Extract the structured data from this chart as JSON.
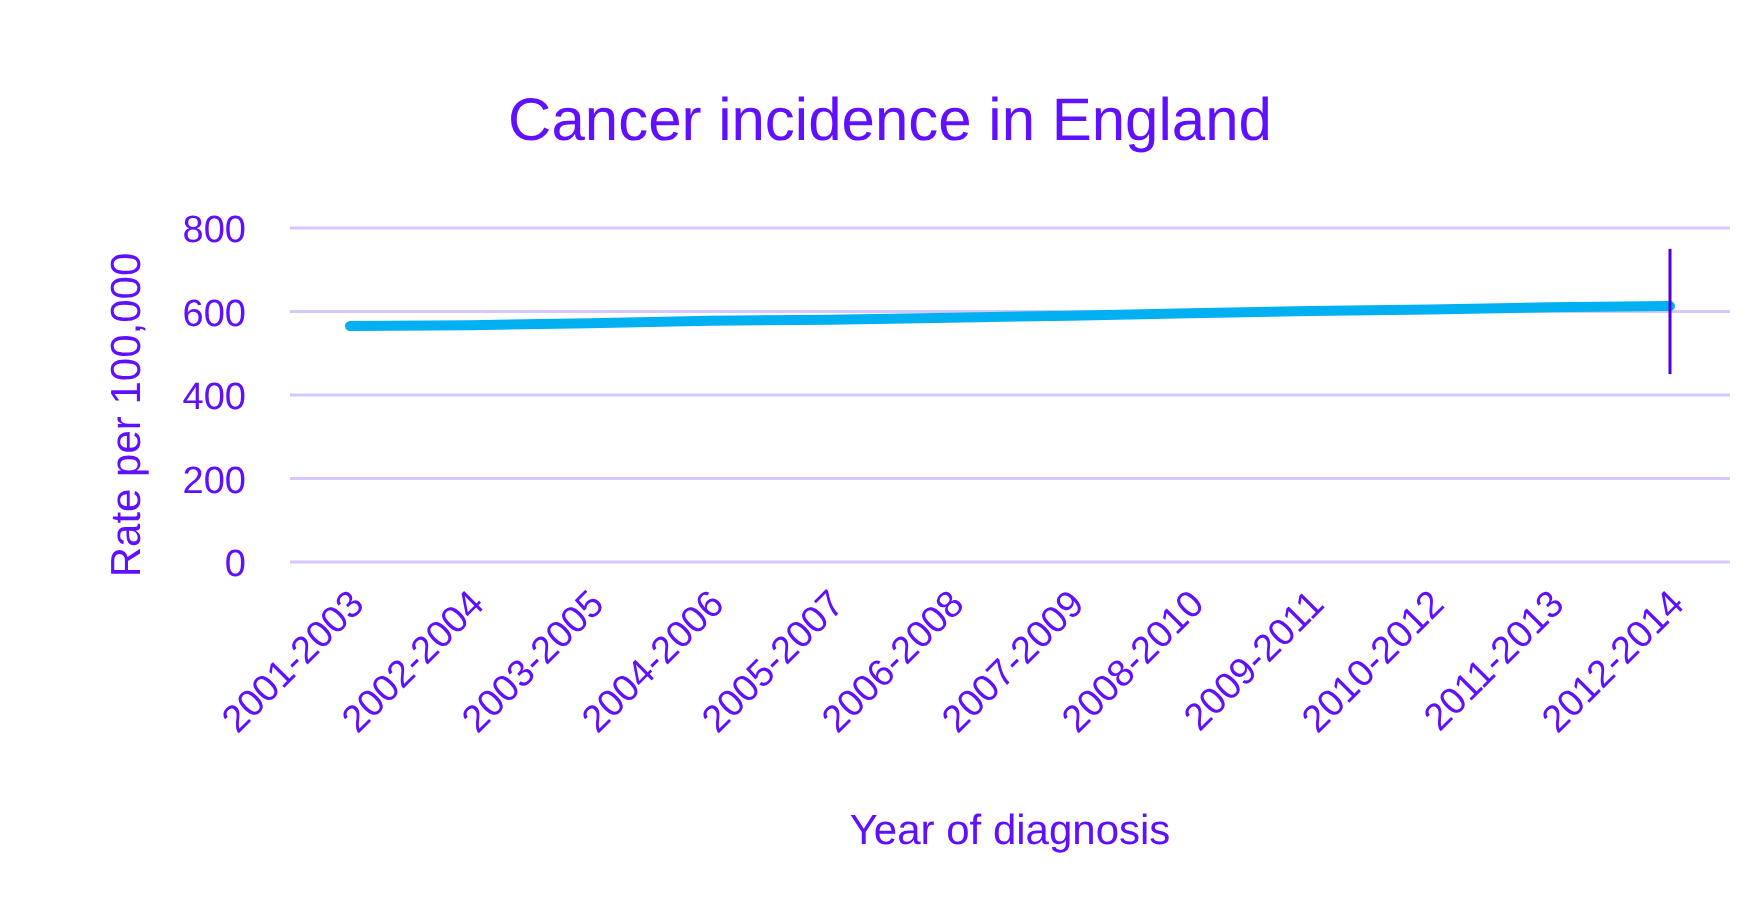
{
  "chart_data": {
    "type": "line",
    "title": "Cancer incidence in England",
    "xlabel": "Year of diagnosis",
    "ylabel": "Rate per 100,000",
    "categories": [
      "2001-2003",
      "2002-2004",
      "2003-2005",
      "2004-2006",
      "2005-2007",
      "2006-2008",
      "2007-2009",
      "2008-2010",
      "2009-2011",
      "2010-2012",
      "2011-2013",
      "2012-2014"
    ],
    "series": [
      {
        "color": "#00b0f0",
        "values": [
          565,
          567,
          572,
          578,
          580,
          585,
          590,
          596,
          601,
          605,
          610,
          613
        ],
        "errors": [
          null,
          null,
          null,
          null,
          null,
          null,
          null,
          null,
          null,
          null,
          null,
          [
            450,
            750
          ]
        ]
      }
    ],
    "ylim": [
      0,
      800
    ],
    "yticks": [
      0,
      200,
      400,
      600,
      800
    ],
    "grid": "y",
    "marker": "none",
    "line_style": "solid"
  }
}
